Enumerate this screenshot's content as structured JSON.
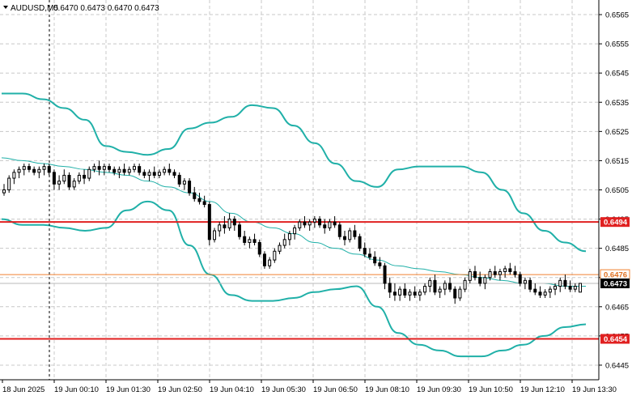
{
  "header": {
    "symbol": "AUDUSD,M5",
    "quote": "0.6470 0.6473 0.6470 0.6473"
  },
  "chart_data": {
    "type": "line",
    "ylim": [
      0.644,
      0.657
    ],
    "y_ticks": [
      0.6445,
      0.6455,
      0.6465,
      0.6475,
      0.6485,
      0.6495,
      0.6505,
      0.6515,
      0.6525,
      0.6535,
      0.6545,
      0.6555,
      0.6565
    ],
    "y_tick_labels": [
      "0.6445",
      "0.6455",
      "0.6465",
      "0.6475",
      "0.6485",
      "0.6495",
      "0.6505",
      "0.6515",
      "0.6525",
      "0.6535",
      "0.6545",
      "0.6555",
      "0.6565"
    ],
    "x_tick_labels": [
      "18 Jun 2025",
      "19 Jun 00:10",
      "19 Jun 01:30",
      "19 Jun 02:50",
      "19 Jun 04:10",
      "19 Jun 05:30",
      "19 Jun 06:50",
      "19 Jun 08:10",
      "19 Jun 09:30",
      "19 Jun 10:50",
      "19 Jun 12:10",
      "19 Jun 13:30"
    ],
    "horizontal_levels": [
      {
        "value": 0.6494,
        "label": "0.6494",
        "color": "#e02020"
      },
      {
        "value": 0.6454,
        "label": "0.6454",
        "color": "#e02020"
      },
      {
        "value": 0.6476,
        "label": "0.6476",
        "color": "#f08030"
      },
      {
        "value": 0.6473,
        "label": "0.6473",
        "color": "#000000"
      }
    ],
    "bollinger": {
      "color": "#20b0a8",
      "upper": [
        0.6538,
        0.6538,
        0.6536,
        0.6533,
        0.6529,
        0.652,
        0.6518,
        0.6517,
        0.6519,
        0.6526,
        0.6528,
        0.653,
        0.6534,
        0.6533,
        0.6527,
        0.6521,
        0.6514,
        0.6508,
        0.6506,
        0.6512,
        0.6513,
        0.6513,
        0.6513,
        0.6511,
        0.6505,
        0.6497,
        0.6491,
        0.6487,
        0.6484
      ],
      "middle": [
        0.6516,
        0.6515,
        0.6514,
        0.6513,
        0.6512,
        0.6511,
        0.651,
        0.6508,
        0.6506,
        0.6504,
        0.6501,
        0.6497,
        0.6494,
        0.6492,
        0.649,
        0.6487,
        0.6485,
        0.6483,
        0.6481,
        0.6479,
        0.6478,
        0.6477,
        0.6476,
        0.6475,
        0.6474,
        0.6473,
        0.6473,
        0.6472,
        0.6472
      ],
      "lower": [
        0.6495,
        0.6493,
        0.6493,
        0.6492,
        0.6491,
        0.6492,
        0.6498,
        0.6501,
        0.6498,
        0.6486,
        0.6476,
        0.6469,
        0.6467,
        0.6467,
        0.6468,
        0.647,
        0.6471,
        0.6472,
        0.6465,
        0.6456,
        0.6452,
        0.645,
        0.6448,
        0.6448,
        0.645,
        0.6452,
        0.6455,
        0.6458,
        0.6459
      ]
    },
    "candles": [
      [
        0.6504,
        0.6507,
        0.6503,
        0.6505
      ],
      [
        0.6505,
        0.651,
        0.6504,
        0.6509
      ],
      [
        0.6509,
        0.6512,
        0.6507,
        0.6511
      ],
      [
        0.6511,
        0.6513,
        0.6509,
        0.6512
      ],
      [
        0.6512,
        0.6514,
        0.651,
        0.6513
      ],
      [
        0.6513,
        0.6514,
        0.6511,
        0.6512
      ],
      [
        0.6512,
        0.6513,
        0.651,
        0.6511
      ],
      [
        0.6511,
        0.6513,
        0.6509,
        0.6512
      ],
      [
        0.6512,
        0.6514,
        0.651,
        0.6513
      ],
      [
        0.6513,
        0.6514,
        0.651,
        0.6511
      ],
      [
        0.6511,
        0.6512,
        0.6505,
        0.6507
      ],
      [
        0.6507,
        0.651,
        0.6505,
        0.6508
      ],
      [
        0.6508,
        0.6512,
        0.6507,
        0.651
      ],
      [
        0.651,
        0.6511,
        0.6505,
        0.6506
      ],
      [
        0.6506,
        0.6509,
        0.6505,
        0.6508
      ],
      [
        0.6508,
        0.6511,
        0.6507,
        0.651
      ],
      [
        0.651,
        0.6512,
        0.6507,
        0.6509
      ],
      [
        0.6509,
        0.6513,
        0.6508,
        0.6512
      ],
      [
        0.6512,
        0.6514,
        0.6511,
        0.6513
      ],
      [
        0.6513,
        0.6515,
        0.651,
        0.6512
      ],
      [
        0.6512,
        0.6514,
        0.651,
        0.6513
      ],
      [
        0.6513,
        0.6514,
        0.6511,
        0.6512
      ],
      [
        0.6512,
        0.6513,
        0.651,
        0.6511
      ],
      [
        0.6511,
        0.6513,
        0.6509,
        0.6512
      ],
      [
        0.6512,
        0.6514,
        0.651,
        0.6511
      ],
      [
        0.6511,
        0.6513,
        0.651,
        0.6512
      ],
      [
        0.6512,
        0.6514,
        0.6511,
        0.6513
      ],
      [
        0.6513,
        0.6514,
        0.651,
        0.6511
      ],
      [
        0.6511,
        0.6512,
        0.6509,
        0.651
      ],
      [
        0.651,
        0.6512,
        0.6508,
        0.6511
      ],
      [
        0.6511,
        0.6513,
        0.6509,
        0.651
      ],
      [
        0.651,
        0.6512,
        0.6509,
        0.6511
      ],
      [
        0.6511,
        0.6513,
        0.651,
        0.6512
      ],
      [
        0.6512,
        0.6514,
        0.651,
        0.6511
      ],
      [
        0.6511,
        0.6512,
        0.6509,
        0.651
      ],
      [
        0.651,
        0.6511,
        0.6506,
        0.6507
      ],
      [
        0.6507,
        0.6509,
        0.6505,
        0.6508
      ],
      [
        0.6508,
        0.6509,
        0.6503,
        0.6504
      ],
      [
        0.6504,
        0.6506,
        0.6501,
        0.6502
      ],
      [
        0.6502,
        0.6504,
        0.65,
        0.6501
      ],
      [
        0.6501,
        0.6503,
        0.6499,
        0.65
      ],
      [
        0.65,
        0.6501,
        0.6486,
        0.6488
      ],
      [
        0.6488,
        0.6492,
        0.6487,
        0.6491
      ],
      [
        0.6491,
        0.6494,
        0.6489,
        0.6493
      ],
      [
        0.6493,
        0.6496,
        0.649,
        0.6492
      ],
      [
        0.6492,
        0.6497,
        0.6491,
        0.6495
      ],
      [
        0.6495,
        0.6496,
        0.6491,
        0.6493
      ],
      [
        0.6493,
        0.6494,
        0.6488,
        0.6489
      ],
      [
        0.6489,
        0.6491,
        0.6486,
        0.6487
      ],
      [
        0.6487,
        0.6489,
        0.6485,
        0.6488
      ],
      [
        0.6488,
        0.649,
        0.6486,
        0.6487
      ],
      [
        0.6487,
        0.6488,
        0.6482,
        0.6483
      ],
      [
        0.6483,
        0.6484,
        0.6478,
        0.6479
      ],
      [
        0.6479,
        0.6482,
        0.6478,
        0.6481
      ],
      [
        0.6481,
        0.6485,
        0.648,
        0.6484
      ],
      [
        0.6484,
        0.6487,
        0.6483,
        0.6486
      ],
      [
        0.6486,
        0.649,
        0.6485,
        0.6488
      ],
      [
        0.6488,
        0.6491,
        0.6486,
        0.649
      ],
      [
        0.649,
        0.6493,
        0.6488,
        0.6492
      ],
      [
        0.6492,
        0.6495,
        0.6491,
        0.6494
      ],
      [
        0.6494,
        0.6496,
        0.6492,
        0.6493
      ],
      [
        0.6493,
        0.6495,
        0.6491,
        0.6494
      ],
      [
        0.6494,
        0.6496,
        0.6492,
        0.6495
      ],
      [
        0.6495,
        0.6496,
        0.6492,
        0.6493
      ],
      [
        0.6493,
        0.6495,
        0.649,
        0.6492
      ],
      [
        0.6492,
        0.6495,
        0.6491,
        0.6494
      ],
      [
        0.6494,
        0.6496,
        0.6492,
        0.6493
      ],
      [
        0.6493,
        0.6494,
        0.6488,
        0.6489
      ],
      [
        0.6489,
        0.6491,
        0.6486,
        0.6488
      ],
      [
        0.6488,
        0.6492,
        0.6487,
        0.6491
      ],
      [
        0.6491,
        0.6493,
        0.6488,
        0.6489
      ],
      [
        0.6489,
        0.649,
        0.6484,
        0.6485
      ],
      [
        0.6485,
        0.6487,
        0.6482,
        0.6483
      ],
      [
        0.6483,
        0.6485,
        0.6481,
        0.6482
      ],
      [
        0.6482,
        0.6484,
        0.6479,
        0.648
      ],
      [
        0.648,
        0.6482,
        0.6478,
        0.6479
      ],
      [
        0.6479,
        0.648,
        0.6471,
        0.6473
      ],
      [
        0.6473,
        0.6475,
        0.6468,
        0.647
      ],
      [
        0.647,
        0.6473,
        0.6467,
        0.6469
      ],
      [
        0.6469,
        0.6472,
        0.6467,
        0.6471
      ],
      [
        0.6471,
        0.6473,
        0.6468,
        0.6469
      ],
      [
        0.6469,
        0.6471,
        0.6467,
        0.647
      ],
      [
        0.647,
        0.6472,
        0.6468,
        0.6469
      ],
      [
        0.6469,
        0.6471,
        0.6467,
        0.647
      ],
      [
        0.647,
        0.6473,
        0.6469,
        0.6472
      ],
      [
        0.6472,
        0.6475,
        0.647,
        0.6474
      ],
      [
        0.6474,
        0.6476,
        0.6469,
        0.647
      ],
      [
        0.647,
        0.6472,
        0.6468,
        0.6471
      ],
      [
        0.6471,
        0.6474,
        0.6469,
        0.6473
      ],
      [
        0.6473,
        0.6475,
        0.647,
        0.6471
      ],
      [
        0.6471,
        0.6472,
        0.6466,
        0.6468
      ],
      [
        0.6468,
        0.6472,
        0.6467,
        0.6471
      ],
      [
        0.6471,
        0.6475,
        0.647,
        0.6474
      ],
      [
        0.6474,
        0.6478,
        0.6473,
        0.6477
      ],
      [
        0.6477,
        0.6479,
        0.6474,
        0.6475
      ],
      [
        0.6475,
        0.6477,
        0.6472,
        0.6473
      ],
      [
        0.6473,
        0.6476,
        0.6471,
        0.6475
      ],
      [
        0.6475,
        0.6478,
        0.6474,
        0.6477
      ],
      [
        0.6477,
        0.6479,
        0.6475,
        0.6476
      ],
      [
        0.6476,
        0.6478,
        0.6474,
        0.6477
      ],
      [
        0.6477,
        0.6479,
        0.6475,
        0.6478
      ],
      [
        0.6478,
        0.648,
        0.6476,
        0.6477
      ],
      [
        0.6477,
        0.6479,
        0.6475,
        0.6476
      ],
      [
        0.6476,
        0.6477,
        0.6472,
        0.6473
      ],
      [
        0.6473,
        0.6475,
        0.6471,
        0.6474
      ],
      [
        0.6474,
        0.6475,
        0.647,
        0.6471
      ],
      [
        0.6471,
        0.6473,
        0.6469,
        0.647
      ],
      [
        0.647,
        0.6472,
        0.6468,
        0.6469
      ],
      [
        0.6469,
        0.6471,
        0.6468,
        0.647
      ],
      [
        0.647,
        0.6472,
        0.6468,
        0.6471
      ],
      [
        0.6471,
        0.6473,
        0.6469,
        0.6472
      ],
      [
        0.6472,
        0.6475,
        0.647,
        0.6474
      ],
      [
        0.6474,
        0.6476,
        0.6471,
        0.6472
      ],
      [
        0.6472,
        0.6474,
        0.647,
        0.6471
      ],
      [
        0.6471,
        0.6473,
        0.647,
        0.6472
      ],
      [
        0.647,
        0.6473,
        0.647,
        0.6473
      ]
    ]
  }
}
